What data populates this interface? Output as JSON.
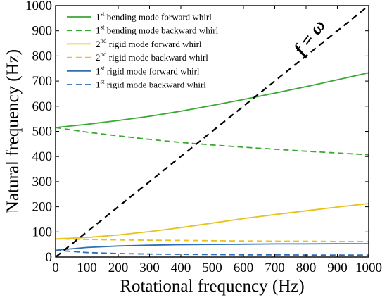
{
  "chart_data": {
    "type": "line",
    "xlabel": "Rotational frequency (Hz)",
    "ylabel": "Natural frequency (Hz)",
    "xlim": [
      0,
      1000
    ],
    "ylim": [
      0,
      1000
    ],
    "x_ticks": [
      0,
      100,
      200,
      300,
      400,
      500,
      600,
      700,
      800,
      900,
      1000
    ],
    "y_ticks": [
      0,
      100,
      200,
      300,
      400,
      500,
      600,
      700,
      800,
      900,
      1000
    ],
    "grid": false,
    "legend_position": "top-left",
    "annotation": {
      "text_main": "f",
      "text_eq": " = ",
      "text_var": "ω"
    },
    "series": [
      {
        "name": "1st bending mode forward whirl",
        "legend_prefix": "1",
        "legend_sup": "st",
        "legend_rest": " bending mode forward whirl",
        "color": "#3aa832",
        "dash": "solid",
        "x": [
          0,
          100,
          200,
          300,
          400,
          500,
          600,
          700,
          800,
          900,
          1000
        ],
        "y": [
          515,
          528,
          543,
          560,
          580,
          603,
          627,
          652,
          678,
          705,
          733
        ]
      },
      {
        "name": "1st bending mode backward whirl",
        "legend_prefix": "1",
        "legend_sup": "st",
        "legend_rest": " bending mode backward whirl",
        "color": "#3aa832",
        "dash": "dashed",
        "x": [
          0,
          100,
          200,
          300,
          400,
          500,
          600,
          700,
          800,
          900,
          1000
        ],
        "y": [
          515,
          497,
          482,
          468,
          456,
          446,
          437,
          429,
          421,
          414,
          407
        ]
      },
      {
        "name": "2nd rigid mode forward whirl",
        "legend_prefix": "2",
        "legend_sup": "nd",
        "legend_rest": " rigid mode forward whirl",
        "color": "#e8c21a",
        "dash": "solid",
        "x": [
          0,
          100,
          200,
          300,
          400,
          500,
          600,
          700,
          800,
          900,
          1000
        ],
        "y": [
          72,
          78,
          88,
          101,
          117,
          135,
          153,
          169,
          184,
          199,
          213
        ]
      },
      {
        "name": "2nd rigid mode backward whirl",
        "legend_prefix": "2",
        "legend_sup": "nd",
        "legend_rest": " rigid mode backward whirl",
        "color": "#e8c21a",
        "dash": "dashed",
        "x": [
          0,
          100,
          200,
          300,
          400,
          500,
          600,
          700,
          800,
          900,
          1000
        ],
        "y": [
          72,
          70,
          68,
          67,
          66,
          65,
          64,
          63,
          63,
          62,
          62
        ]
      },
      {
        "name": "1st rigid mode forward whirl",
        "legend_prefix": "1",
        "legend_sup": "st",
        "legend_rest": "  rigid mode forward whirl",
        "color": "#2f6fb5",
        "dash": "solid",
        "x": [
          0,
          100,
          200,
          300,
          400,
          500,
          600,
          700,
          800,
          900,
          1000
        ],
        "y": [
          27,
          38,
          44,
          47,
          49,
          50,
          51,
          52,
          52,
          53,
          53
        ]
      },
      {
        "name": "1st rigid mode backward whirl",
        "legend_prefix": "1",
        "legend_sup": "st",
        "legend_rest": "  rigid mode backward whirl",
        "color": "#2f6fb5",
        "dash": "dashed",
        "x": [
          0,
          100,
          200,
          300,
          400,
          500,
          600,
          700,
          800,
          900,
          1000
        ],
        "y": [
          27,
          18,
          14,
          12,
          11,
          10,
          9,
          9,
          8,
          8,
          8
        ]
      },
      {
        "name": "f = ω",
        "color": "#000000",
        "dash": "dashed",
        "width": 2.2,
        "x": [
          0,
          1000
        ],
        "y": [
          0,
          1000
        ]
      }
    ]
  }
}
